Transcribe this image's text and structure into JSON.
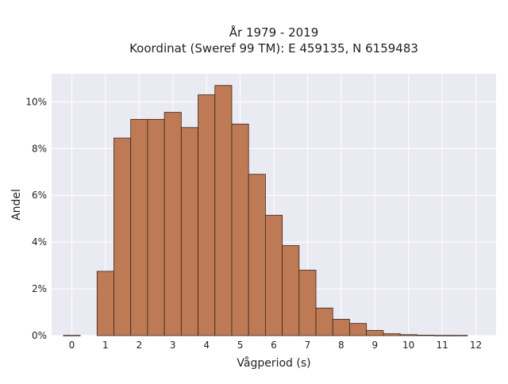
{
  "chart_data": {
    "type": "bar",
    "title_line1": "År 1979 - 2019",
    "title_line2": "Koordinat (Sweref 99 TM): E 459135, N 6159483",
    "xlabel": "Vågperiod (s)",
    "ylabel": "Andel",
    "xlim": [
      -0.6,
      12.6
    ],
    "ylim": [
      0,
      11.2
    ],
    "bin_width": 0.5,
    "x_ticks": [
      0,
      1,
      2,
      3,
      4,
      5,
      6,
      7,
      8,
      9,
      10,
      11,
      12
    ],
    "x_tick_labels": [
      "0",
      "1",
      "2",
      "3",
      "4",
      "5",
      "6",
      "7",
      "8",
      "9",
      "10",
      "11",
      "12"
    ],
    "y_ticks": [
      0,
      2,
      4,
      6,
      8,
      10
    ],
    "y_tick_labels": [
      "0%",
      "2%",
      "4%",
      "6%",
      "8%",
      "10%"
    ],
    "grid": true,
    "bins": [
      {
        "x": 0.0,
        "value": 0.01
      },
      {
        "x": 1.0,
        "value": 2.75
      },
      {
        "x": 1.5,
        "value": 8.45
      },
      {
        "x": 2.0,
        "value": 9.25
      },
      {
        "x": 2.5,
        "value": 9.25
      },
      {
        "x": 3.0,
        "value": 9.55
      },
      {
        "x": 3.5,
        "value": 8.9
      },
      {
        "x": 4.0,
        "value": 10.3
      },
      {
        "x": 4.5,
        "value": 10.7
      },
      {
        "x": 5.0,
        "value": 9.05
      },
      {
        "x": 5.5,
        "value": 6.9
      },
      {
        "x": 6.0,
        "value": 5.15
      },
      {
        "x": 6.5,
        "value": 3.85
      },
      {
        "x": 7.0,
        "value": 2.8
      },
      {
        "x": 7.5,
        "value": 1.18
      },
      {
        "x": 8.0,
        "value": 0.7
      },
      {
        "x": 8.5,
        "value": 0.52
      },
      {
        "x": 9.0,
        "value": 0.22
      },
      {
        "x": 9.5,
        "value": 0.08
      },
      {
        "x": 10.0,
        "value": 0.04
      },
      {
        "x": 10.5,
        "value": 0.02
      },
      {
        "x": 11.0,
        "value": 0.01
      },
      {
        "x": 11.5,
        "value": 0.01
      }
    ],
    "colors": {
      "bar_fill": "#bd7a55",
      "bar_edge": "#3b2418",
      "plot_bg": "#eaeaf2",
      "grid": "#ffffff"
    }
  }
}
